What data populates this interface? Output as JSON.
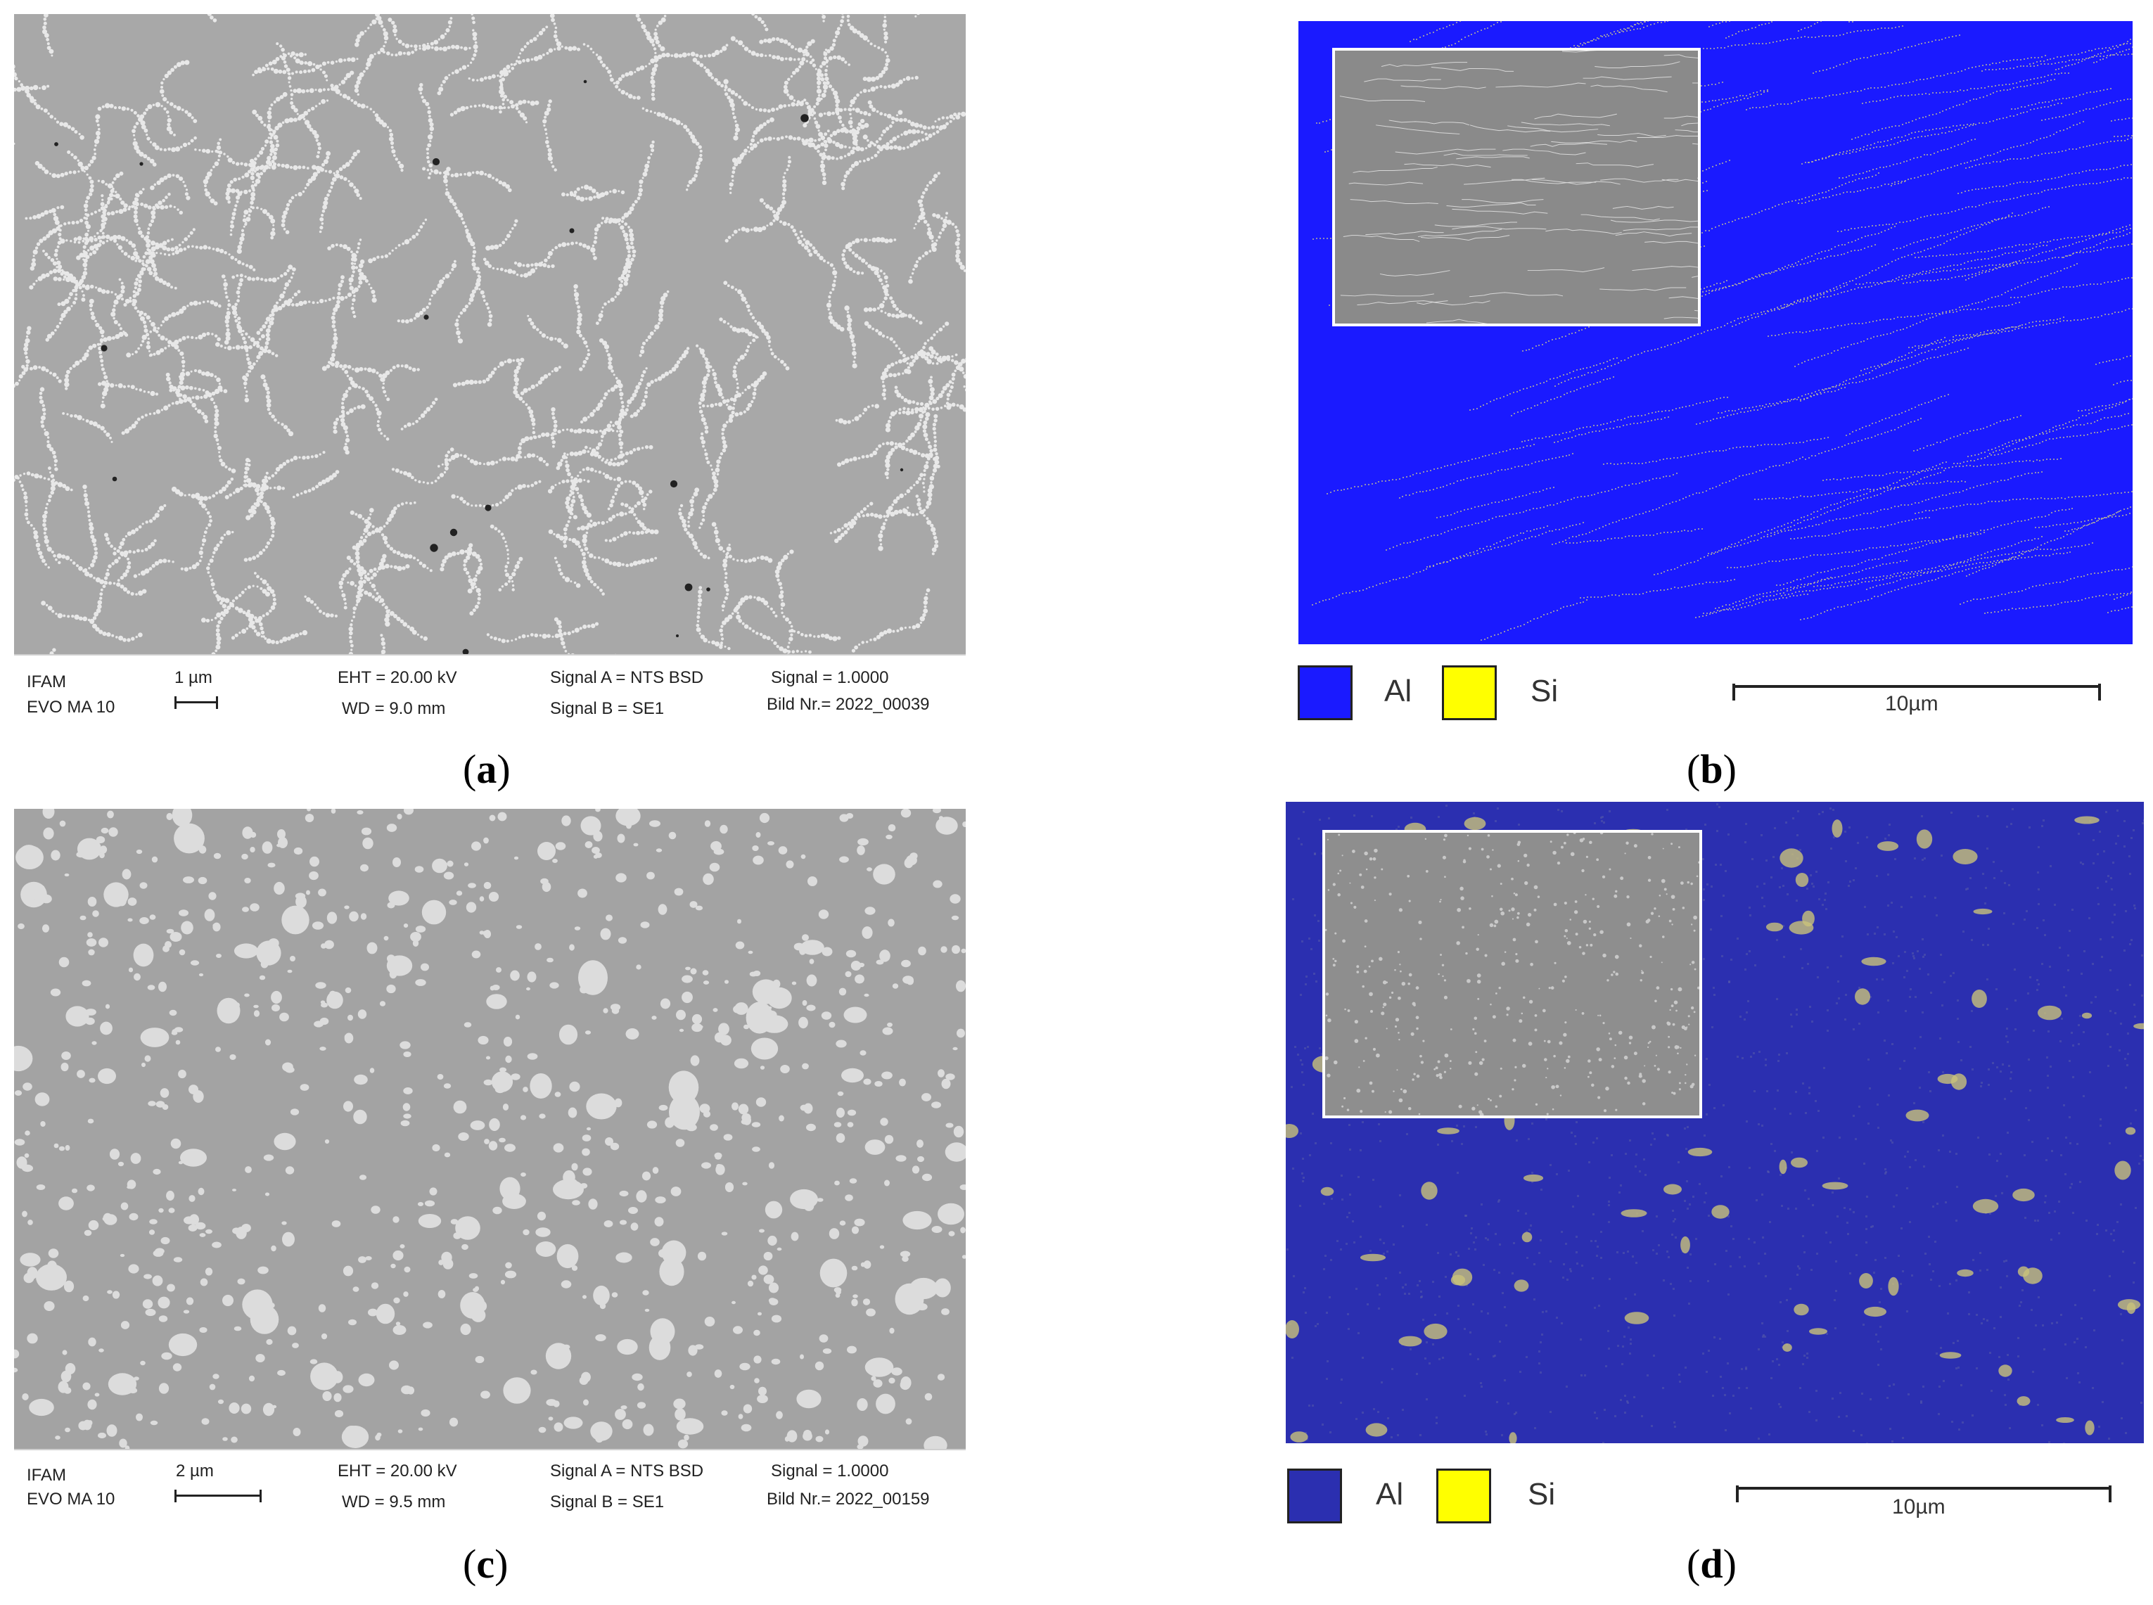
{
  "panels": {
    "a": {
      "caption_open": "(",
      "caption_letter": "a",
      "caption_close": ")",
      "databar": {
        "lab": "IFAM",
        "instrument": "EVO MA 10",
        "scale": "1 µm",
        "eht": "EHT = 20.00 kV",
        "wd": "WD =  9.0 mm",
        "signal_a": "Signal A = NTS BSD",
        "signal_b": "Signal B = SE1",
        "signal": "Signal = 1.0000",
        "bild": "Bild Nr.= 2022_00039"
      }
    },
    "b": {
      "caption_open": "(",
      "caption_letter": "b",
      "caption_close": ")",
      "legend": {
        "al": "Al",
        "si": "Si",
        "scale": "10µm"
      }
    },
    "c": {
      "caption_open": "(",
      "caption_letter": "c",
      "caption_close": ")",
      "databar": {
        "lab": "IFAM",
        "instrument": "EVO MA 10",
        "scale": "2 µm",
        "eht": "EHT = 20.00 kV",
        "wd": "WD =  9.5 mm",
        "signal_a": "Signal A = NTS BSD",
        "signal_b": "Signal B = SE1",
        "signal": "Signal = 1.0000",
        "bild": "Bild Nr.= 2022_00159"
      }
    },
    "d": {
      "caption_open": "(",
      "caption_letter": "d",
      "caption_close": ")",
      "legend": {
        "al": "Al",
        "si": "Si",
        "scale": "10µm"
      }
    }
  },
  "colors": {
    "al_b": "#1a1aff",
    "al_d": "#2b2fb0",
    "si": "#ffff00",
    "sem_bg": "#a9a9a9"
  }
}
